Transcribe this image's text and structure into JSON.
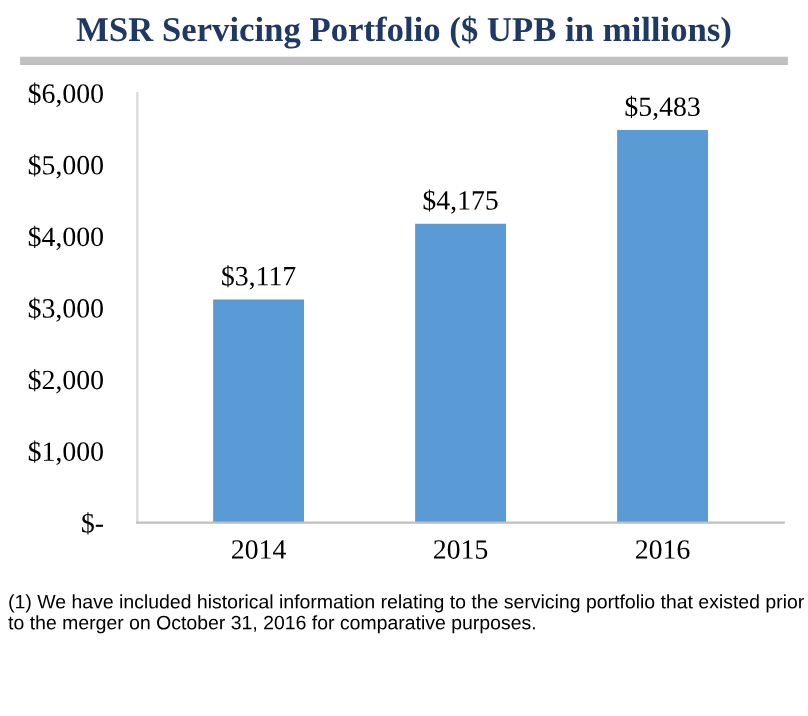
{
  "chart_data": {
    "type": "bar",
    "title": "MSR Servicing Portfolio ($ UPB in millions)",
    "categories": [
      "2014",
      "2015",
      "2016"
    ],
    "values": [
      3117,
      4175,
      5483
    ],
    "value_labels": [
      "$3,117",
      "$4,175",
      "$5,483"
    ],
    "color": "#5b9bd5",
    "ylim": [
      0,
      6000
    ],
    "yticks": [
      {
        "value": 0,
        "label": "$-"
      },
      {
        "value": 1000,
        "label": "$1,000"
      },
      {
        "value": 2000,
        "label": "$2,000"
      },
      {
        "value": 3000,
        "label": "$3,000"
      },
      {
        "value": 4000,
        "label": "$4,000"
      },
      {
        "value": 5000,
        "label": "$5,000"
      },
      {
        "value": 6000,
        "label": "$6,000"
      }
    ],
    "grid": false,
    "annotations": [
      "(1) We have included historical information relating to the servicing portfolio that existed prior to the merger on October 31, 2016 for comparative purposes."
    ]
  }
}
